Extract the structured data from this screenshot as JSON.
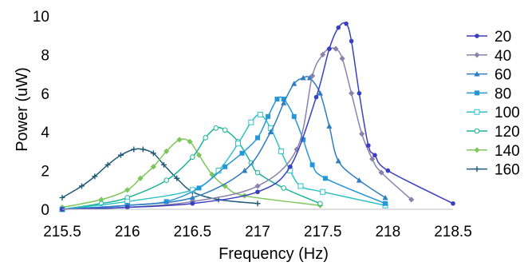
{
  "chart_data": {
    "type": "line",
    "title": "",
    "xlabel": "Frequency (Hz)",
    "ylabel": "Power (uW)",
    "xlim": [
      215.5,
      218.5
    ],
    "ylim": [
      0,
      10
    ],
    "xticks": [
      215.5,
      216,
      216.5,
      217,
      217.5,
      218,
      218.5
    ],
    "xtick_labels": [
      "215.5",
      "216",
      "216.5",
      "217",
      "217.5",
      "218",
      "218.5"
    ],
    "yticks": [
      0,
      2,
      4,
      6,
      8,
      10
    ],
    "ytick_labels": [
      "0",
      "2",
      "4",
      "6",
      "8",
      "10"
    ],
    "grid": false,
    "legend_position": "right",
    "series": [
      {
        "name": "20",
        "color": "#3a3fc0",
        "marker": "circle",
        "x": [
          215.5,
          216.0,
          216.5,
          217.0,
          217.25,
          217.45,
          217.55,
          217.62,
          217.68,
          217.72,
          217.78,
          217.85,
          217.9,
          218.0,
          218.5
        ],
        "y": [
          0.0,
          0.1,
          0.3,
          0.9,
          2.2,
          5.8,
          8.3,
          9.4,
          9.6,
          8.7,
          6.0,
          3.3,
          2.8,
          2.0,
          0.3
        ]
      },
      {
        "name": "40",
        "color": "#8a82ab",
        "marker": "diamond",
        "x": [
          215.5,
          216.0,
          216.5,
          217.0,
          217.3,
          217.42,
          217.5,
          217.55,
          217.6,
          217.65,
          217.72,
          217.8,
          217.88,
          217.95,
          218.18
        ],
        "y": [
          0.0,
          0.1,
          0.4,
          1.2,
          3.1,
          6.9,
          8.0,
          8.3,
          8.3,
          7.8,
          6.0,
          3.9,
          2.6,
          1.9,
          0.5
        ]
      },
      {
        "name": "60",
        "color": "#2e7cc1",
        "marker": "triangle",
        "x": [
          215.5,
          216.0,
          216.5,
          216.9,
          217.1,
          217.2,
          217.28,
          217.35,
          217.4,
          217.48,
          217.55,
          217.62,
          217.78,
          217.98
        ],
        "y": [
          0.0,
          0.2,
          0.6,
          2.0,
          4.0,
          5.5,
          6.5,
          6.8,
          6.8,
          6.0,
          4.3,
          2.5,
          1.5,
          0.6
        ]
      },
      {
        "name": "80",
        "color": "#2596d8",
        "marker": "square",
        "x": [
          215.5,
          216.0,
          216.3,
          216.55,
          216.75,
          216.88,
          217.0,
          217.08,
          217.15,
          217.2,
          217.28,
          217.35,
          217.42,
          217.52,
          217.98
        ],
        "y": [
          0.0,
          0.2,
          0.4,
          1.1,
          2.2,
          2.9,
          3.7,
          4.8,
          5.7,
          5.7,
          4.8,
          3.6,
          2.3,
          1.6,
          0.3
        ]
      },
      {
        "name": "100",
        "color": "#2ec2c6",
        "marker": "square-open",
        "x": [
          215.5,
          216.0,
          216.5,
          216.7,
          216.85,
          216.95,
          217.02,
          217.1,
          217.18,
          217.25,
          217.33,
          217.5,
          217.98
        ],
        "y": [
          0.0,
          0.4,
          1.0,
          2.0,
          3.4,
          4.5,
          4.9,
          4.2,
          3.0,
          2.0,
          1.2,
          0.9,
          0.2
        ]
      },
      {
        "name": "120",
        "color": "#19b397",
        "marker": "circle-open",
        "x": [
          215.5,
          215.8,
          216.0,
          216.3,
          216.5,
          216.6,
          216.68,
          216.75,
          216.85,
          216.95,
          217.0,
          217.2,
          217.48
        ],
        "y": [
          0.0,
          0.3,
          0.6,
          1.5,
          2.7,
          3.7,
          4.2,
          4.1,
          3.5,
          2.4,
          1.9,
          1.1,
          0.3
        ]
      },
      {
        "name": "140",
        "color": "#7dc65b",
        "marker": "diamond",
        "x": [
          215.5,
          215.8,
          216.0,
          216.1,
          216.2,
          216.3,
          216.4,
          216.48,
          216.55,
          216.65,
          216.75,
          216.9,
          217.48
        ],
        "y": [
          0.1,
          0.5,
          1.0,
          1.6,
          2.2,
          3.0,
          3.6,
          3.5,
          2.8,
          1.8,
          1.2,
          0.7,
          0.2
        ]
      },
      {
        "name": "160",
        "color": "#1f5a78",
        "marker": "plus",
        "x": [
          215.5,
          215.65,
          215.75,
          215.85,
          215.95,
          216.05,
          216.12,
          216.2,
          216.28,
          216.38,
          216.5,
          216.7,
          217.0
        ],
        "y": [
          0.6,
          1.2,
          1.7,
          2.3,
          2.8,
          3.1,
          3.1,
          2.9,
          2.3,
          1.6,
          0.9,
          0.5,
          0.3
        ]
      }
    ]
  }
}
